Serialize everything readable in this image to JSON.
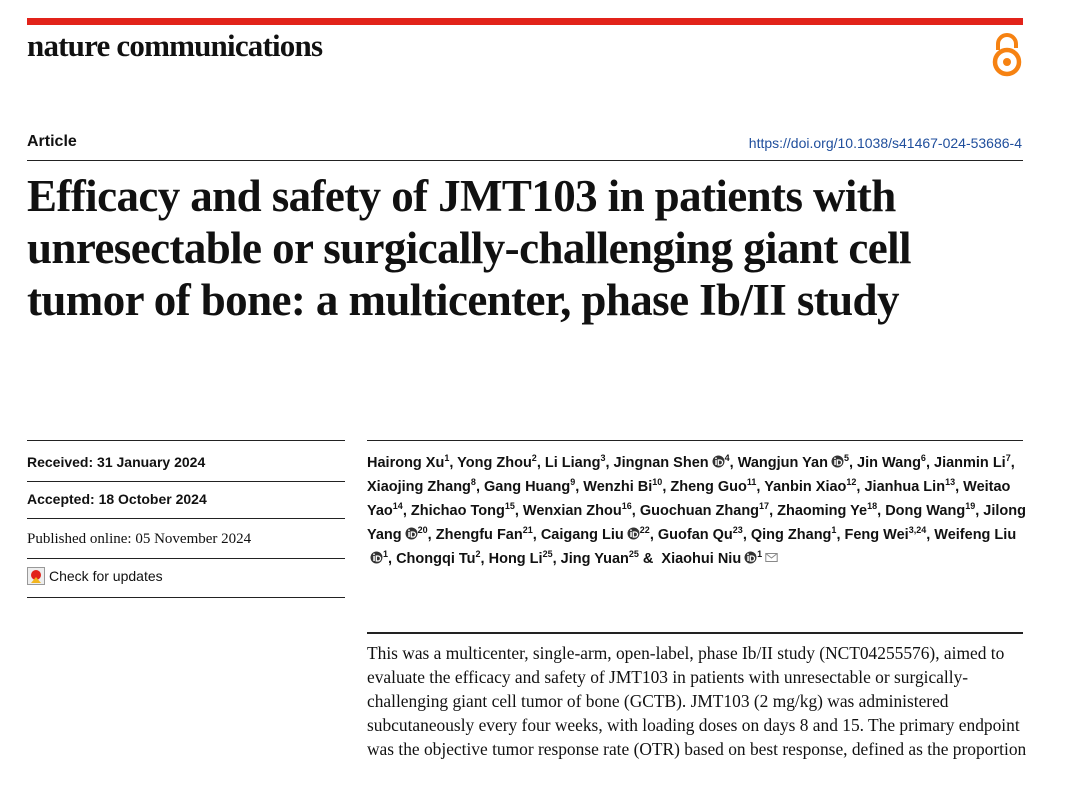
{
  "header": {
    "journal": "nature communications"
  },
  "article": {
    "type": "Article",
    "doi": "https://doi.org/10.1038/s41467-024-53686-4",
    "title": "Efficacy and safety of JMT103 in patients with unresectable or surgically-challenging giant cell tumor of bone: a multicenter, phase Ib/II study"
  },
  "dates": {
    "received": {
      "label": "Received:",
      "date": "31 January 2024"
    },
    "accepted": {
      "label": "Accepted:",
      "date": "18 October 2024"
    },
    "published": {
      "label": "Published online:",
      "date": "05 November 2024"
    },
    "check_updates": "Check for updates"
  },
  "authors": [
    {
      "name": "Hairong Xu",
      "aff": "1",
      "sep": ","
    },
    {
      "name": "Yong Zhou",
      "aff": "2",
      "sep": ","
    },
    {
      "name": "Li Liang",
      "aff": "3",
      "sep": ","
    },
    {
      "name": "Jingnan Shen",
      "orcid": true,
      "aff": "4",
      "sep": ","
    },
    {
      "name": "Wangjun Yan",
      "orcid": true,
      "aff": "5",
      "sep": ","
    },
    {
      "name": "Jin Wang",
      "aff": "6",
      "sep": ","
    },
    {
      "name": "Jianmin Li",
      "aff": "7",
      "sep": ","
    },
    {
      "name": "Xiaojing Zhang",
      "aff": "8",
      "sep": ","
    },
    {
      "name": "Gang Huang",
      "aff": "9",
      "sep": ","
    },
    {
      "name": "Wenzhi Bi",
      "aff": "10",
      "sep": ","
    },
    {
      "name": "Zheng Guo",
      "aff": "11",
      "sep": ","
    },
    {
      "name": "Yanbin Xiao",
      "aff": "12",
      "sep": ","
    },
    {
      "name": "Jianhua Lin",
      "aff": "13",
      "sep": ","
    },
    {
      "name": "Weitao Yao",
      "aff": "14",
      "sep": ","
    },
    {
      "name": "Zhichao Tong",
      "aff": "15",
      "sep": ","
    },
    {
      "name": "Wenxian Zhou",
      "aff": "16",
      "sep": ","
    },
    {
      "name": "Guochuan Zhang",
      "aff": "17",
      "sep": ","
    },
    {
      "name": "Zhaoming Ye",
      "aff": "18",
      "sep": ","
    },
    {
      "name": "Dong Wang",
      "aff": "19",
      "sep": ","
    },
    {
      "name": "Jilong Yang",
      "orcid": true,
      "aff": "20",
      "sep": ","
    },
    {
      "name": "Zhengfu Fan",
      "aff": "21",
      "sep": ","
    },
    {
      "name": "Caigang Liu",
      "orcid": true,
      "aff": "22",
      "sep": ","
    },
    {
      "name": "Guofan Qu",
      "aff": "23",
      "sep": ","
    },
    {
      "name": "Qing Zhang",
      "aff": "1",
      "sep": ","
    },
    {
      "name": "Feng Wei",
      "aff": "3,24",
      "sep": ","
    },
    {
      "name": "Weifeng Liu",
      "orcid": true,
      "aff": "1",
      "sep": ","
    },
    {
      "name": "Chongqi Tu",
      "aff": "2",
      "sep": ","
    },
    {
      "name": "Hong Li",
      "aff": "25",
      "sep": ","
    },
    {
      "name": "Jing Yuan",
      "aff": "25",
      "sep": "&"
    },
    {
      "name": "Xiaohui Niu",
      "orcid": true,
      "aff": "1",
      "mail": true
    }
  ],
  "abstract": "This was a multicenter, single-arm, open-label, phase Ib/II study (NCT04255576), aimed to evaluate the efficacy and safety of JMT103 in patients with unresectable or surgically-challenging giant cell tumor of bone (GCTB). JMT103 (2 mg/kg) was administered subcutaneously every four weeks, with loading doses on days 8 and 15. The primary endpoint was the objective tumor response rate (OTR) based on best response, defined as the proportion"
}
